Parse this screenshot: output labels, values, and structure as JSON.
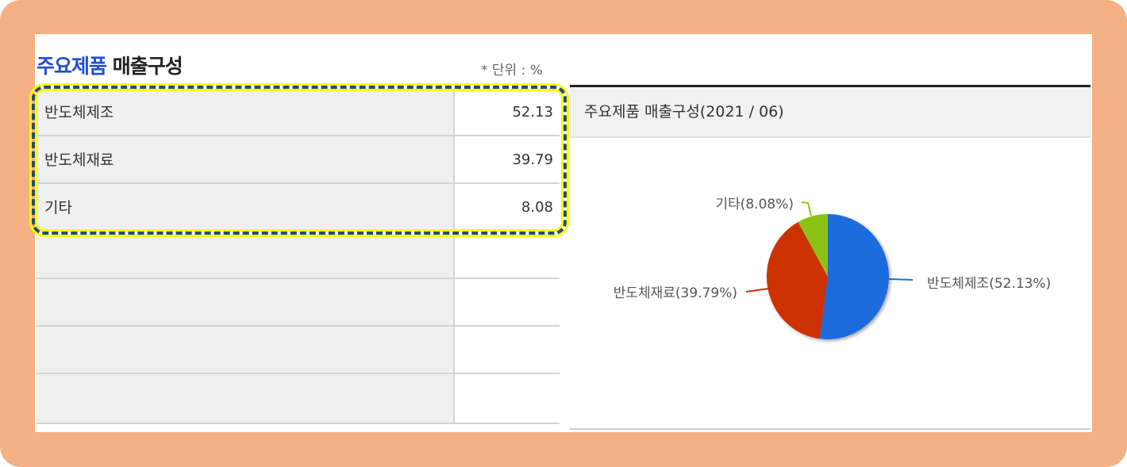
{
  "header": {
    "title_part1": "주요제품",
    "title_part2": "매출구성",
    "unit": "* 단위 : %"
  },
  "table": {
    "rows": [
      {
        "label": "반도체제조",
        "value": "52.13"
      },
      {
        "label": "반도체재료",
        "value": "39.79"
      },
      {
        "label": "기타",
        "value": "8.08"
      }
    ]
  },
  "chart_data": {
    "type": "pie",
    "title": "주요제품 매출구성(2021 / 06)",
    "categories": [
      "반도체제조",
      "반도체재료",
      "기타"
    ],
    "values": [
      52.13,
      39.79,
      8.08
    ],
    "labels": [
      "반도체제조(52.13%)",
      "반도체재료(39.79%)",
      "기타(8.08%)"
    ],
    "colors": [
      "#1f6cdd",
      "#cc3300",
      "#8cc214"
    ],
    "start_angle": "12 o'clock, clockwise"
  },
  "colors": {
    "frame": "#f3b184",
    "highlight_border": "#1f4e79",
    "highlight_glow": "#ffff00"
  }
}
